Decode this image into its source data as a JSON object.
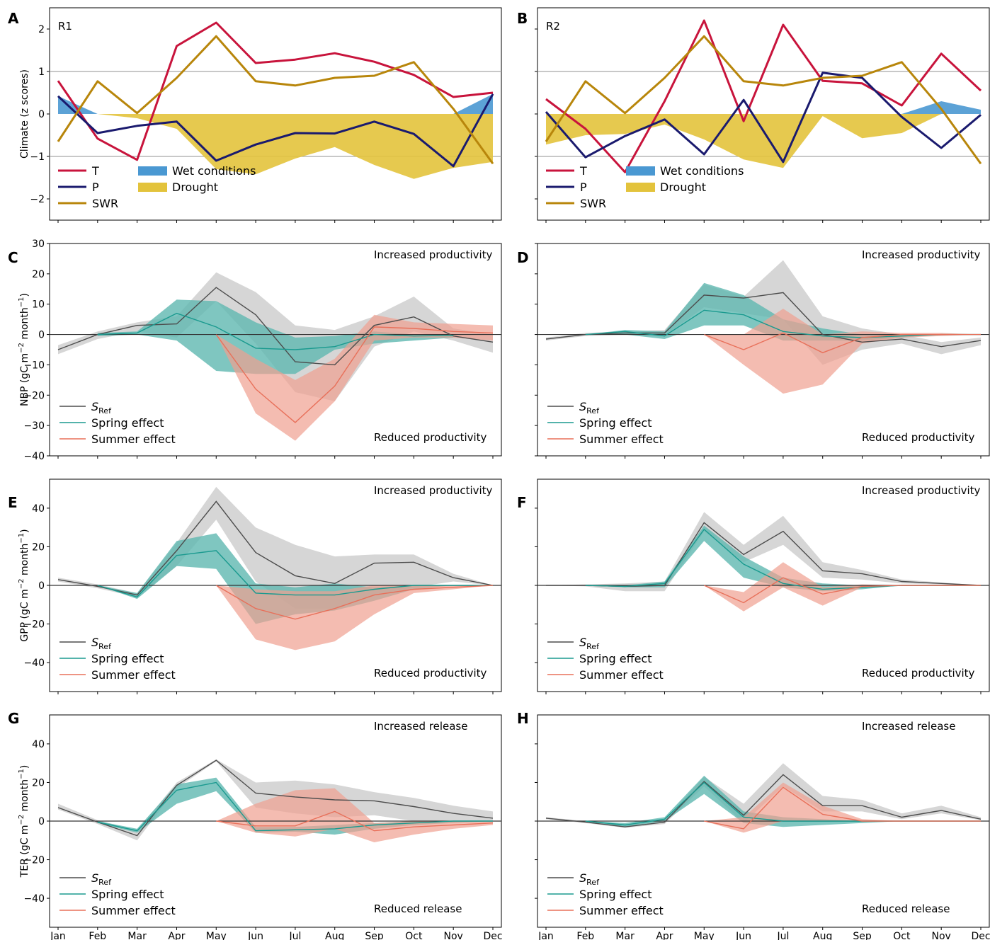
{
  "months": [
    "Jan",
    "Feb",
    "Mar",
    "Apr",
    "May",
    "Jun",
    "Jul",
    "Aug",
    "Sep",
    "Oct",
    "Nov",
    "Dec"
  ],
  "colors": {
    "T": "#c8143c",
    "P": "#1a1a6e",
    "SWR": "#b8860b",
    "wet": "#4a98d2",
    "drought": "#e3c33c",
    "sref": "#4d4d4d",
    "sref_band": "#cfcfcf",
    "spring": "#1a9a8f",
    "spring_band": "#5fb8b0",
    "summer": "#e8705a",
    "summer_band": "#f0a090"
  },
  "legend_common": {
    "sref": "S",
    "sref_sub": "Ref",
    "spring": "Spring effect",
    "summer": "Summer effect"
  },
  "chart_data": [
    {
      "id": "A",
      "type": "line",
      "region_label": "R1",
      "ylabel": "Climate (z scores)",
      "ylim": [
        -2.5,
        2.5
      ],
      "yticks": [
        -2,
        -1,
        0,
        1,
        2
      ],
      "ytick_labels": [
        "−2",
        "−1",
        "0",
        "1",
        "2"
      ],
      "hlines": [
        -1,
        1
      ],
      "show_xticks": false,
      "legend": {
        "T": "T",
        "P": "P",
        "SWR": "SWR",
        "wet": "Wet conditions",
        "drought": "Drought"
      },
      "series": [
        {
          "name": "T",
          "key": "T",
          "values": [
            0.78,
            -0.58,
            -1.08,
            1.6,
            2.15,
            1.2,
            1.28,
            1.43,
            1.23,
            0.92,
            0.4,
            0.5
          ]
        },
        {
          "name": "P",
          "key": "P",
          "values": [
            0.42,
            -0.45,
            -0.28,
            -0.18,
            -1.1,
            -0.72,
            -0.45,
            -0.46,
            -0.18,
            -0.47,
            -1.23,
            0.47
          ]
        },
        {
          "name": "SWR",
          "key": "SWR",
          "values": [
            -0.65,
            0.77,
            0.02,
            0.85,
            1.83,
            0.77,
            0.67,
            0.85,
            0.9,
            1.22,
            0.12,
            -1.17
          ]
        }
      ],
      "wet": [
        0.42,
        0,
        0,
        0,
        0,
        0,
        0,
        0,
        0,
        0,
        0,
        0.47
      ],
      "drought_lower": [
        0,
        0,
        -0.1,
        -0.35,
        -1.3,
        -1.42,
        -1.05,
        -0.78,
        -1.2,
        -1.53,
        -1.27,
        -1.13
      ]
    },
    {
      "id": "B",
      "type": "line",
      "region_label": "R2",
      "ylabel": "",
      "ylim": [
        -2.5,
        2.5
      ],
      "yticks": [
        -2,
        -1,
        0,
        1,
        2
      ],
      "ytick_labels": [
        "",
        "",
        "",
        "",
        ""
      ],
      "hlines": [
        -1,
        1
      ],
      "show_xticks": false,
      "legend": {
        "T": "T",
        "P": "P",
        "SWR": "SWR",
        "wet": "Wet conditions",
        "drought": "Drought"
      },
      "series": [
        {
          "name": "T",
          "key": "T",
          "values": [
            0.35,
            -0.35,
            -1.37,
            0.3,
            2.2,
            -0.17,
            2.1,
            0.78,
            0.72,
            0.2,
            1.42,
            0.55
          ]
        },
        {
          "name": "P",
          "key": "P",
          "values": [
            0.05,
            -1.02,
            -0.52,
            -0.13,
            -0.95,
            0.33,
            -1.13,
            0.97,
            0.85,
            -0.07,
            -0.8,
            -0.02
          ]
        },
        {
          "name": "SWR",
          "key": "SWR",
          "values": [
            -0.65,
            0.77,
            0.02,
            0.85,
            1.83,
            0.77,
            0.67,
            0.85,
            0.9,
            1.22,
            0.12,
            -1.17
          ]
        }
      ],
      "wet": [
        0,
        0,
        0,
        0,
        0,
        0,
        0,
        0,
        0,
        0,
        0.3,
        0.1
      ],
      "drought_lower": [
        -0.72,
        -0.5,
        -0.47,
        -0.25,
        -0.6,
        -1.07,
        -1.27,
        -0.05,
        -0.57,
        -0.45,
        0,
        0
      ]
    },
    {
      "id": "C",
      "type": "area",
      "ylabel": "NBP (gC m$^{-2}$ month$^{-1}$)",
      "ylim": [
        -40,
        30
      ],
      "yticks": [
        -40,
        -30,
        -20,
        -10,
        0,
        10,
        20,
        30
      ],
      "ytick_labels": [
        "−40",
        "−30",
        "−20",
        "−10",
        "0",
        "10",
        "20",
        "30"
      ],
      "show_xticks": false,
      "annot_top": "Increased productivity",
      "annot_bottom": "Reduced productivity",
      "sref": {
        "values": [
          -5,
          0,
          3,
          3.5,
          15.5,
          6.5,
          -9,
          -10,
          3,
          5.8,
          -0.5,
          -2.5
        ],
        "lo": [
          -6.5,
          -1.5,
          1,
          -1,
          11,
          -3,
          -19,
          -22,
          -4,
          1,
          -2,
          -6
        ],
        "hi": [
          -3.5,
          1,
          4,
          6,
          20.5,
          14,
          3,
          1.5,
          6,
          12.5,
          2,
          0
        ]
      },
      "spring": {
        "start": 1,
        "values": [
          0,
          0.5,
          7,
          2.5,
          -4.5,
          -5,
          -4,
          0,
          -0.5,
          -0.3
        ],
        "lo": [
          -0.5,
          0,
          -2,
          -12,
          -13,
          -13,
          -5,
          -3,
          -2,
          -1
        ],
        "hi": [
          0.5,
          1,
          11.5,
          11,
          4,
          -1,
          -0.5,
          1,
          0,
          0
        ]
      },
      "summer": {
        "start": 4,
        "values": [
          0,
          -18,
          -29,
          -17,
          2.5,
          2,
          1,
          0.5
        ],
        "lo": [
          0,
          -26,
          -35,
          -22,
          -2,
          -1,
          -1,
          -2
        ],
        "hi": [
          0,
          -8,
          -15,
          -8,
          6.5,
          4,
          3.5,
          3
        ]
      }
    },
    {
      "id": "D",
      "type": "area",
      "ylabel": "",
      "ylim": [
        -40,
        30
      ],
      "yticks": [
        -40,
        -30,
        -20,
        -10,
        0,
        10,
        20,
        30
      ],
      "ytick_labels": [
        "",
        "",
        "",
        "",
        "",
        "",
        "",
        ""
      ],
      "show_xticks": false,
      "annot_top": "Increased productivity",
      "annot_bottom": "Reduced productivity",
      "sref": {
        "values": [
          -1.5,
          0,
          0.5,
          0.5,
          13,
          12,
          13.8,
          0,
          -2.5,
          -1.5,
          -4,
          -2
        ],
        "lo": [
          -2,
          -0.5,
          0,
          -0.5,
          9,
          7,
          5,
          -10,
          -5,
          -3,
          -6.5,
          -3.5
        ],
        "hi": [
          -1,
          0.5,
          1,
          1.5,
          16.5,
          12.5,
          24.5,
          6,
          2,
          0,
          -2.5,
          -1
        ]
      },
      "spring": {
        "start": 1,
        "values": [
          0,
          1,
          -0.5,
          8,
          6.5,
          1,
          -0.5,
          -1,
          -0.5,
          0,
          0
        ],
        "lo": [
          0,
          0,
          -1.5,
          3,
          3,
          -2,
          -2,
          -2,
          -1,
          0,
          0
        ],
        "hi": [
          0,
          1.5,
          1,
          17,
          13,
          5,
          2,
          0,
          0,
          0,
          0
        ]
      },
      "summer": {
        "start": 4,
        "values": [
          0,
          -5,
          0.5,
          -6,
          -1,
          0,
          0,
          0
        ],
        "lo": [
          0,
          -10,
          -19.5,
          -16.5,
          -3,
          -1,
          -0.5,
          0
        ],
        "hi": [
          0,
          0,
          8.5,
          0,
          1,
          0.5,
          0.5,
          0
        ]
      }
    },
    {
      "id": "E",
      "type": "area",
      "ylabel": "GPP (gC m$^{-2}$ month$^{-1}$)",
      "ylim": [
        -55,
        55
      ],
      "yticks": [
        -40,
        -20,
        0,
        20,
        40
      ],
      "ytick_labels": [
        "−40",
        "−20",
        "0",
        "20",
        "40"
      ],
      "show_xticks": false,
      "annot_top": "Increased productivity",
      "annot_bottom": "Reduced productivity",
      "sref": {
        "values": [
          3,
          -0.5,
          -5,
          18,
          43.5,
          17,
          5,
          1,
          11.5,
          12,
          4,
          0
        ],
        "lo": [
          2,
          -1.5,
          -6,
          10,
          34,
          2,
          -12,
          -12,
          -5,
          -1,
          2,
          0
        ],
        "hi": [
          4,
          0.5,
          -4,
          22,
          51,
          30,
          21,
          15,
          16,
          16,
          6,
          0
        ]
      },
      "spring": {
        "start": 1,
        "values": [
          0,
          -6,
          15.5,
          18,
          -4,
          -5,
          -5,
          -2,
          0,
          0,
          0
        ],
        "lo": [
          0,
          -7,
          10,
          8.5,
          -20,
          -15,
          -13,
          -8,
          -2,
          0,
          0
        ],
        "hi": [
          0,
          -4,
          23,
          27,
          1,
          -1,
          1,
          -1,
          0,
          0,
          0
        ]
      },
      "summer": {
        "start": 4,
        "values": [
          0,
          -12,
          -17.5,
          -12,
          -5,
          -2,
          -1,
          0
        ],
        "lo": [
          0,
          -28,
          -33.5,
          -29,
          -15,
          -4,
          -2,
          0
        ],
        "hi": [
          0,
          -2,
          -3,
          -3,
          0,
          0,
          0,
          0
        ]
      }
    },
    {
      "id": "F",
      "type": "area",
      "ylabel": "",
      "ylim": [
        -55,
        55
      ],
      "yticks": [
        -40,
        -20,
        0,
        20,
        40
      ],
      "ytick_labels": [
        "",
        "",
        "",
        "",
        ""
      ],
      "show_xticks": false,
      "annot_top": "Increased productivity",
      "annot_bottom": "Reduced productivity",
      "sref": {
        "values": [
          0,
          0,
          -0.5,
          0,
          32.5,
          16,
          28,
          7.5,
          6,
          2,
          1,
          0
        ],
        "lo": [
          0,
          -0.5,
          -3,
          -3,
          28,
          12,
          21,
          4,
          3,
          1,
          0.5,
          0
        ],
        "hi": [
          0,
          0.5,
          1,
          2,
          38,
          21,
          36,
          12,
          8,
          3,
          1.5,
          0
        ]
      },
      "spring": {
        "start": 1,
        "values": [
          0,
          -0.5,
          1,
          29,
          11,
          1,
          -2,
          -1,
          0,
          0,
          0
        ],
        "lo": [
          0,
          -1,
          -1,
          23,
          4,
          -1,
          -3,
          -2,
          0,
          0,
          0
        ],
        "hi": [
          0,
          0,
          2,
          31,
          15,
          4,
          1,
          0,
          0,
          0,
          0
        ]
      },
      "summer": {
        "start": 4,
        "values": [
          0,
          -9,
          4,
          -4.5,
          -0.5,
          0,
          0,
          0
        ],
        "lo": [
          0,
          -13.5,
          -1,
          -10.5,
          -1,
          0,
          0,
          0
        ],
        "hi": [
          0,
          -3.5,
          12,
          -1,
          0.5,
          0,
          0,
          0
        ]
      }
    },
    {
      "id": "G",
      "type": "area",
      "ylabel": "TER (gC m$^{-2}$ month$^{-1}$)",
      "ylim": [
        -55,
        55
      ],
      "yticks": [
        -40,
        -20,
        0,
        20,
        40
      ],
      "ytick_labels": [
        "−40",
        "−20",
        "0",
        "20",
        "40"
      ],
      "show_xticks": true,
      "annot_top": "Increased release",
      "annot_bottom": "Reduced release",
      "sref": {
        "values": [
          7,
          -0.5,
          -7.5,
          18.5,
          31.5,
          14.5,
          12.5,
          11,
          10.5,
          7.5,
          4,
          1.5
        ],
        "lo": [
          6,
          -1.5,
          -10,
          17,
          31,
          7,
          4,
          2,
          3,
          0,
          0,
          0
        ],
        "hi": [
          9,
          0.5,
          -5,
          20,
          32,
          20,
          21,
          19,
          15,
          12,
          8,
          5
        ]
      },
      "spring": {
        "start": 1,
        "values": [
          -0.5,
          -5,
          16,
          20,
          -5,
          -4.5,
          -4,
          -2,
          -1,
          0,
          0
        ],
        "lo": [
          -1,
          -6,
          9,
          15.5,
          -6,
          -5.5,
          -7,
          -4,
          -2,
          -1,
          0
        ],
        "hi": [
          0,
          -4,
          19,
          22.5,
          -3,
          -3,
          -2,
          -1,
          0,
          0,
          0
        ]
      },
      "summer": {
        "start": 4,
        "values": [
          0,
          -2.5,
          -2.5,
          5,
          -5,
          -3,
          -2,
          -1
        ],
        "lo": [
          0,
          -6,
          -8,
          -4,
          -11,
          -7,
          -4,
          -2
        ],
        "hi": [
          0,
          9,
          16,
          17,
          -1,
          0,
          0,
          0
        ]
      }
    },
    {
      "id": "H",
      "type": "area",
      "ylabel": "",
      "ylim": [
        -55,
        55
      ],
      "yticks": [
        -40,
        -20,
        0,
        20,
        40
      ],
      "ytick_labels": [
        "",
        "",
        "",
        "",
        ""
      ],
      "show_xticks": true,
      "annot_top": "Increased release",
      "annot_bottom": "Reduced release",
      "sref": {
        "values": [
          1.5,
          -0.5,
          -3,
          -0.5,
          20.5,
          3,
          24,
          8,
          8,
          2,
          5.5,
          1
        ],
        "lo": [
          1,
          -1,
          -3.5,
          -1.5,
          18,
          -1,
          18,
          5,
          5,
          1,
          4,
          0.5
        ],
        "hi": [
          2,
          0,
          -2,
          0.5,
          23,
          9,
          30,
          13,
          11,
          4,
          8,
          2
        ]
      },
      "spring": {
        "start": 1,
        "values": [
          0,
          -2,
          1,
          20,
          2,
          0,
          0,
          0,
          0,
          0,
          0
        ],
        "lo": [
          0,
          -3,
          0,
          14,
          -1,
          -3,
          -2,
          -1,
          0,
          0,
          0
        ],
        "hi": [
          0,
          -1,
          2,
          23.5,
          5,
          2,
          1,
          0,
          0,
          0,
          0
        ]
      },
      "summer": {
        "start": 4,
        "values": [
          0,
          -4,
          17.5,
          3.5,
          0,
          0,
          0,
          0
        ],
        "lo": [
          0,
          -6,
          0,
          0,
          0,
          0,
          0,
          0
        ],
        "hi": [
          0,
          2,
          20,
          8,
          1,
          0,
          0,
          0
        ]
      }
    }
  ]
}
